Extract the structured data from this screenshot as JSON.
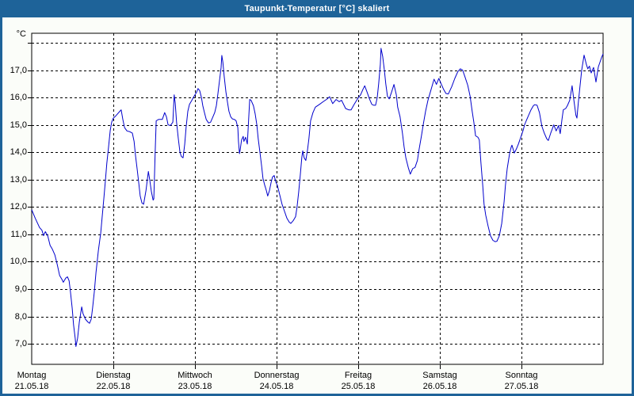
{
  "window": {
    "title": "Taupunkt-Temperatur [°C] skaliert"
  },
  "colors": {
    "titlebar_bg": "#1E6399",
    "titlebar_text": "#FFFFFF",
    "window_border": "#1E6399",
    "page_bg": "#FBFDF9",
    "plot_bg": "#FFFFFF",
    "grid": "#000000",
    "line": "#0000CC",
    "label_text": "#000000"
  },
  "chart_data": {
    "type": "line",
    "title": "Taupunkt-Temperatur [°C] skaliert",
    "ylabel_unit": "°C",
    "ylim": [
      6.25,
      18.35
    ],
    "xlim_hours": [
      0,
      168
    ],
    "grid": {
      "y_step": 1,
      "y_grid_min": 7,
      "y_grid_max": 18,
      "x_step_hours": 24,
      "style": "dashed"
    },
    "y_ticks": [
      {
        "value": 17,
        "label": "17,0"
      },
      {
        "value": 16,
        "label": "16,0"
      },
      {
        "value": 15,
        "label": "15,0"
      },
      {
        "value": 14,
        "label": "14,0"
      },
      {
        "value": 13,
        "label": "13,0"
      },
      {
        "value": 12,
        "label": "12,0"
      },
      {
        "value": 11,
        "label": "11,0"
      },
      {
        "value": 10,
        "label": "10,0"
      },
      {
        "value": 9,
        "label": "9,0"
      },
      {
        "value": 8,
        "label": "8,0"
      },
      {
        "value": 7,
        "label": "7,0"
      }
    ],
    "x_categories": [
      {
        "day": "Montag",
        "date": "21.05.18"
      },
      {
        "day": "Dienstag",
        "date": "22.05.18"
      },
      {
        "day": "Mittwoch",
        "date": "23.05.18"
      },
      {
        "day": "Donnerstag",
        "date": "24.05.18"
      },
      {
        "day": "Freitag",
        "date": "25.05.18"
      },
      {
        "day": "Samstag",
        "date": "26.05.18"
      },
      {
        "day": "Sonntag",
        "date": "27.05.18"
      }
    ],
    "series": [
      {
        "name": "Taupunkt-Temperatur",
        "color": "#0000CC",
        "points": [
          [
            0,
            11.9
          ],
          [
            1,
            11.6
          ],
          [
            2.3,
            11.25
          ],
          [
            3,
            11.15
          ],
          [
            3.5,
            10.95
          ],
          [
            4,
            11.1
          ],
          [
            4.7,
            10.95
          ],
          [
            5.4,
            10.6
          ],
          [
            6.1,
            10.45
          ],
          [
            6.8,
            10.25
          ],
          [
            7.5,
            9.9
          ],
          [
            8.2,
            9.5
          ],
          [
            8.9,
            9.35
          ],
          [
            9.3,
            9.25
          ],
          [
            10,
            9.4
          ],
          [
            10.5,
            9.45
          ],
          [
            11,
            9.3
          ],
          [
            11.4,
            8.9
          ],
          [
            11.9,
            8.3
          ],
          [
            12.3,
            7.7
          ],
          [
            12.8,
            7.2
          ],
          [
            13,
            6.9
          ],
          [
            13.5,
            7.2
          ],
          [
            14,
            7.8
          ],
          [
            14.7,
            8.35
          ],
          [
            15.1,
            8.1
          ],
          [
            15.8,
            7.9
          ],
          [
            16.5,
            7.8
          ],
          [
            17,
            7.75
          ],
          [
            17.5,
            7.9
          ],
          [
            17.9,
            8.3
          ],
          [
            18.4,
            8.9
          ],
          [
            18.9,
            9.6
          ],
          [
            19.6,
            10.4
          ],
          [
            20.3,
            11.05
          ],
          [
            20.7,
            11.6
          ],
          [
            21.2,
            12.3
          ],
          [
            21.7,
            13.0
          ],
          [
            22.1,
            13.6
          ],
          [
            22.6,
            14.2
          ],
          [
            23.1,
            14.8
          ],
          [
            23.5,
            15.1
          ],
          [
            24,
            15.25
          ],
          [
            24.5,
            15.3
          ],
          [
            25.2,
            15.4
          ],
          [
            25.9,
            15.5
          ],
          [
            26.3,
            15.55
          ],
          [
            26.8,
            15.2
          ],
          [
            27.3,
            14.9
          ],
          [
            28,
            14.78
          ],
          [
            28.9,
            14.75
          ],
          [
            29.6,
            14.7
          ],
          [
            30.1,
            14.4
          ],
          [
            30.5,
            13.9
          ],
          [
            31,
            13.4
          ],
          [
            31.5,
            12.85
          ],
          [
            31.9,
            12.4
          ],
          [
            32.4,
            12.15
          ],
          [
            32.9,
            12.1
          ],
          [
            33.6,
            12.6
          ],
          [
            34.3,
            13.3
          ],
          [
            34.7,
            13.0
          ],
          [
            35.2,
            12.55
          ],
          [
            35.7,
            12.25
          ],
          [
            35.9,
            12.3
          ],
          [
            36.3,
            14.0
          ],
          [
            36.6,
            15.15
          ],
          [
            37.3,
            15.2
          ],
          [
            38.4,
            15.2
          ],
          [
            39.1,
            15.45
          ],
          [
            39.6,
            15.3
          ],
          [
            40.1,
            15.0
          ],
          [
            40.8,
            14.98
          ],
          [
            41.5,
            15.1
          ],
          [
            41.9,
            16.1
          ],
          [
            42.2,
            15.8
          ],
          [
            42.6,
            15.1
          ],
          [
            43.1,
            14.5
          ],
          [
            43.6,
            14.0
          ],
          [
            44,
            13.85
          ],
          [
            44.5,
            13.8
          ],
          [
            45,
            14.3
          ],
          [
            45.4,
            14.9
          ],
          [
            45.9,
            15.5
          ],
          [
            46.4,
            15.75
          ],
          [
            47.1,
            15.9
          ],
          [
            47.5,
            16.0
          ],
          [
            48,
            16.1
          ],
          [
            48.5,
            16.2
          ],
          [
            48.9,
            16.33
          ],
          [
            49.4,
            16.25
          ],
          [
            49.9,
            16.0
          ],
          [
            50.3,
            15.7
          ],
          [
            50.8,
            15.45
          ],
          [
            51.3,
            15.2
          ],
          [
            52,
            15.07
          ],
          [
            52.6,
            15.1
          ],
          [
            53.3,
            15.3
          ],
          [
            53.8,
            15.45
          ],
          [
            54.3,
            15.7
          ],
          [
            54.7,
            16.1
          ],
          [
            55.2,
            16.6
          ],
          [
            55.7,
            17.1
          ],
          [
            55.9,
            17.54
          ],
          [
            56.2,
            17.3
          ],
          [
            56.6,
            16.77
          ],
          [
            57.1,
            16.2
          ],
          [
            57.6,
            15.8
          ],
          [
            58,
            15.5
          ],
          [
            58.5,
            15.3
          ],
          [
            59,
            15.22
          ],
          [
            59.6,
            15.2
          ],
          [
            60.1,
            15.15
          ],
          [
            60.6,
            14.9
          ],
          [
            60.8,
            14.4
          ],
          [
            61.1,
            13.95
          ],
          [
            61.3,
            14.1
          ],
          [
            61.7,
            14.45
          ],
          [
            62.2,
            14.58
          ],
          [
            62.4,
            14.4
          ],
          [
            62.9,
            14.55
          ],
          [
            63.4,
            14.3
          ],
          [
            63.6,
            14.8
          ],
          [
            64.1,
            15.93
          ],
          [
            64.5,
            15.9
          ],
          [
            65.2,
            15.7
          ],
          [
            65.7,
            15.4
          ],
          [
            66.2,
            15.0
          ],
          [
            66.6,
            14.5
          ],
          [
            67.1,
            14.0
          ],
          [
            67.6,
            13.5
          ],
          [
            68,
            13.05
          ],
          [
            68.5,
            12.8
          ],
          [
            69,
            12.6
          ],
          [
            69.4,
            12.4
          ],
          [
            69.9,
            12.6
          ],
          [
            70.4,
            12.9
          ],
          [
            70.8,
            13.1
          ],
          [
            71.3,
            13.15
          ],
          [
            71.8,
            12.9
          ],
          [
            72.2,
            12.8
          ],
          [
            72.9,
            12.45
          ],
          [
            73.6,
            12.1
          ],
          [
            74.3,
            11.85
          ],
          [
            75,
            11.6
          ],
          [
            75.7,
            11.45
          ],
          [
            76.2,
            11.4
          ],
          [
            76.9,
            11.5
          ],
          [
            77.6,
            11.65
          ],
          [
            78,
            12.0
          ],
          [
            78.5,
            12.55
          ],
          [
            79,
            13.2
          ],
          [
            79.4,
            13.8
          ],
          [
            79.7,
            14.05
          ],
          [
            80.1,
            13.8
          ],
          [
            80.6,
            13.7
          ],
          [
            81.1,
            14.1
          ],
          [
            81.5,
            14.5
          ],
          [
            82,
            15.15
          ],
          [
            82.7,
            15.45
          ],
          [
            83.4,
            15.65
          ],
          [
            84.6,
            15.75
          ],
          [
            85.7,
            15.85
          ],
          [
            86.9,
            15.95
          ],
          [
            87.6,
            16.03
          ],
          [
            88.5,
            15.78
          ],
          [
            89.5,
            15.93
          ],
          [
            90.4,
            15.85
          ],
          [
            91.1,
            15.9
          ],
          [
            92.3,
            15.6
          ],
          [
            93.2,
            15.55
          ],
          [
            93.9,
            15.55
          ],
          [
            94.8,
            15.75
          ],
          [
            95.8,
            15.95
          ],
          [
            96.7,
            16.1
          ],
          [
            97.4,
            16.3
          ],
          [
            97.9,
            16.43
          ],
          [
            98.6,
            16.2
          ],
          [
            99.3,
            15.95
          ],
          [
            100,
            15.75
          ],
          [
            100.6,
            15.72
          ],
          [
            101.1,
            15.72
          ],
          [
            101.6,
            16.0
          ],
          [
            102,
            16.5
          ],
          [
            102.5,
            17.2
          ],
          [
            102.7,
            17.8
          ],
          [
            103.2,
            17.5
          ],
          [
            103.7,
            17.0
          ],
          [
            104.1,
            16.5
          ],
          [
            104.6,
            16.05
          ],
          [
            105.1,
            15.95
          ],
          [
            105.8,
            16.2
          ],
          [
            106.5,
            16.48
          ],
          [
            107.2,
            16.1
          ],
          [
            107.6,
            15.65
          ],
          [
            108.3,
            15.3
          ],
          [
            109,
            14.7
          ],
          [
            109.5,
            14.2
          ],
          [
            110,
            13.8
          ],
          [
            110.7,
            13.45
          ],
          [
            111.3,
            13.2
          ],
          [
            112,
            13.4
          ],
          [
            112.7,
            13.45
          ],
          [
            113.4,
            13.7
          ],
          [
            113.9,
            14.1
          ],
          [
            114.6,
            14.6
          ],
          [
            115.1,
            15.0
          ],
          [
            115.8,
            15.5
          ],
          [
            116.5,
            15.9
          ],
          [
            117.2,
            16.2
          ],
          [
            117.9,
            16.5
          ],
          [
            118.3,
            16.67
          ],
          [
            119,
            16.48
          ],
          [
            119.7,
            16.7
          ],
          [
            120.4,
            16.5
          ],
          [
            121.1,
            16.3
          ],
          [
            121.8,
            16.15
          ],
          [
            122.5,
            16.13
          ],
          [
            123.5,
            16.4
          ],
          [
            124.4,
            16.7
          ],
          [
            125.3,
            16.95
          ],
          [
            126,
            17.05
          ],
          [
            126.7,
            17.0
          ],
          [
            127.4,
            16.75
          ],
          [
            128.2,
            16.45
          ],
          [
            128.9,
            16.05
          ],
          [
            129.5,
            15.5
          ],
          [
            130,
            15.1
          ],
          [
            130.5,
            14.6
          ],
          [
            131.2,
            14.55
          ],
          [
            131.6,
            14.45
          ],
          [
            132.1,
            13.6
          ],
          [
            132.6,
            12.8
          ],
          [
            133,
            12.1
          ],
          [
            133.5,
            11.7
          ],
          [
            134.2,
            11.3
          ],
          [
            134.9,
            10.95
          ],
          [
            135.6,
            10.78
          ],
          [
            136.3,
            10.73
          ],
          [
            136.8,
            10.75
          ],
          [
            137.5,
            10.95
          ],
          [
            138.2,
            11.4
          ],
          [
            138.9,
            12.2
          ],
          [
            139.3,
            12.8
          ],
          [
            139.8,
            13.4
          ],
          [
            140.5,
            13.95
          ],
          [
            141,
            14.2
          ],
          [
            141.2,
            14.26
          ],
          [
            141.9,
            13.97
          ],
          [
            142.6,
            14.15
          ],
          [
            143.1,
            14.3
          ],
          [
            143.8,
            14.55
          ],
          [
            144.5,
            14.8
          ],
          [
            144.9,
            15.0
          ],
          [
            145.4,
            15.15
          ],
          [
            146.1,
            15.35
          ],
          [
            146.8,
            15.55
          ],
          [
            147.5,
            15.7
          ],
          [
            147.9,
            15.74
          ],
          [
            148.6,
            15.72
          ],
          [
            149.3,
            15.45
          ],
          [
            150,
            14.95
          ],
          [
            150.7,
            14.7
          ],
          [
            151.4,
            14.5
          ],
          [
            151.9,
            14.43
          ],
          [
            152.6,
            14.7
          ],
          [
            153.5,
            15.0
          ],
          [
            154.2,
            14.78
          ],
          [
            154.9,
            14.98
          ],
          [
            155.4,
            14.68
          ],
          [
            155.9,
            15.2
          ],
          [
            156.3,
            15.55
          ],
          [
            157,
            15.6
          ],
          [
            157.5,
            15.7
          ],
          [
            158.2,
            15.9
          ],
          [
            158.9,
            16.43
          ],
          [
            159.3,
            16.0
          ],
          [
            160,
            15.35
          ],
          [
            160.3,
            15.25
          ],
          [
            160.7,
            15.8
          ],
          [
            161.2,
            16.4
          ],
          [
            161.7,
            17.0
          ],
          [
            162.4,
            17.55
          ],
          [
            163.1,
            17.2
          ],
          [
            163.5,
            17.05
          ],
          [
            164,
            17.15
          ],
          [
            164.5,
            16.9
          ],
          [
            165.2,
            17.1
          ],
          [
            165.9,
            16.57
          ],
          [
            166.6,
            17.12
          ],
          [
            167.5,
            17.45
          ],
          [
            168,
            17.6
          ]
        ]
      }
    ]
  }
}
